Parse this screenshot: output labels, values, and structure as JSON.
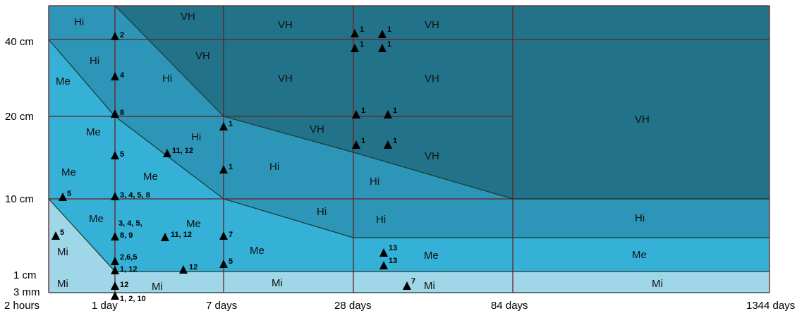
{
  "colors": {
    "mi": "#9fd7e8",
    "me": "#35b0d6",
    "hi": "#2d96b8",
    "vh": "#22738a",
    "grid_lines": "#6a1f1f",
    "boundary_lines": "#1a3a30",
    "marker": "#000000"
  },
  "axes": {
    "y_labels": [
      "40 cm",
      "20 cm",
      "10 cm",
      "1 cm",
      "3 mm"
    ],
    "x_labels": [
      "2 hours",
      "1 day",
      "7 days",
      "28 days",
      "84 days",
      "1344 days"
    ]
  },
  "zones": {
    "mi": "Mi",
    "me": "Me",
    "hi": "Hi",
    "vh": "VH"
  },
  "markers": {
    "m1": "2",
    "m2": "4",
    "m3": "8",
    "m4": "5",
    "m5": "3, 4, 5, 8",
    "m6": "3, 4, 5,",
    "m7": "8, 9",
    "m8": "2,6,5",
    "m9": "1, 12",
    "m10": "12",
    "m11": "1, 2, 10",
    "m12": "5",
    "m13": "5",
    "m14": "11, 12",
    "m15": "11, 12",
    "m16": "12",
    "m17": "1",
    "m18": "1",
    "m19": "7",
    "m20": "5",
    "m21": "1",
    "m22": "1",
    "m23": "1",
    "m24": "1",
    "m25": "1",
    "m26": "1",
    "m27": "1",
    "m28": "1",
    "m29": "13",
    "m30": "13",
    "m31": "7"
  }
}
